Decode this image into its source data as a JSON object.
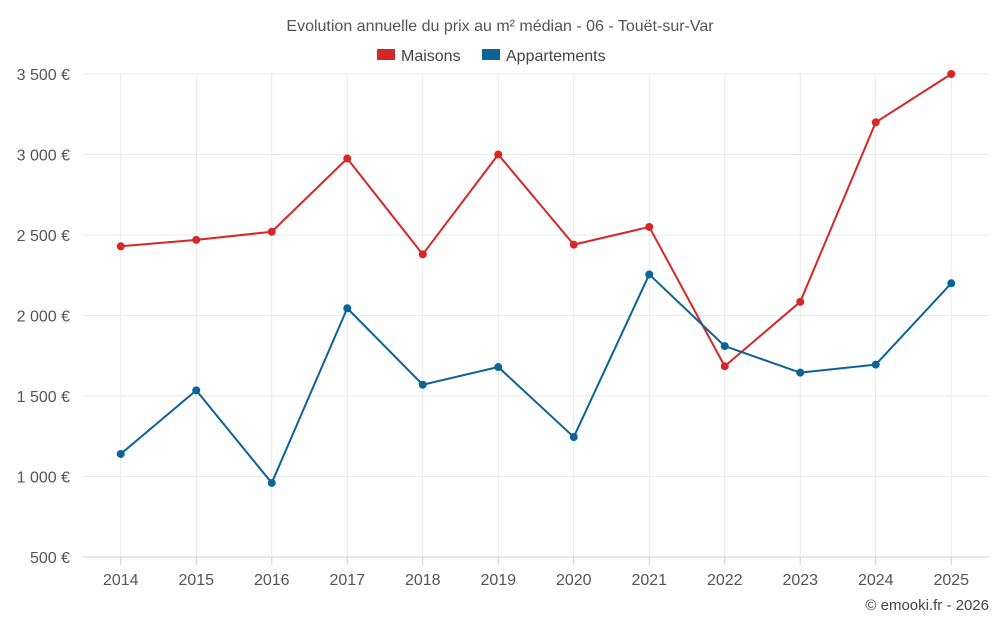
{
  "chart_data": {
    "type": "line",
    "title": "Evolution annuelle du prix au m² médian - 06 - Touët-sur-Var",
    "categories": [
      "2014",
      "2015",
      "2016",
      "2017",
      "2018",
      "2019",
      "2020",
      "2021",
      "2022",
      "2023",
      "2024",
      "2025"
    ],
    "series": [
      {
        "name": "Maisons",
        "color": "#d62728",
        "values": [
          2430,
          2470,
          2520,
          2975,
          2380,
          3000,
          2440,
          2550,
          1685,
          2085,
          3200,
          3500
        ]
      },
      {
        "name": "Appartements",
        "color": "#0b6397",
        "values": [
          1140,
          1535,
          960,
          2045,
          1570,
          1680,
          1245,
          2255,
          1810,
          1645,
          1695,
          2200
        ]
      }
    ],
    "y_ticks": [
      500,
      1000,
      1500,
      2000,
      2500,
      3000,
      3500
    ],
    "y_tick_labels": [
      "500 €",
      "1 000 €",
      "1 500 €",
      "2 000 €",
      "2 500 €",
      "3 000 €",
      "3 500 €"
    ],
    "ylim": [
      500,
      3500
    ],
    "xlabel": "",
    "ylabel": "",
    "grid": true,
    "legend_position": "top-center"
  },
  "credit": "© emooki.fr - 2026"
}
